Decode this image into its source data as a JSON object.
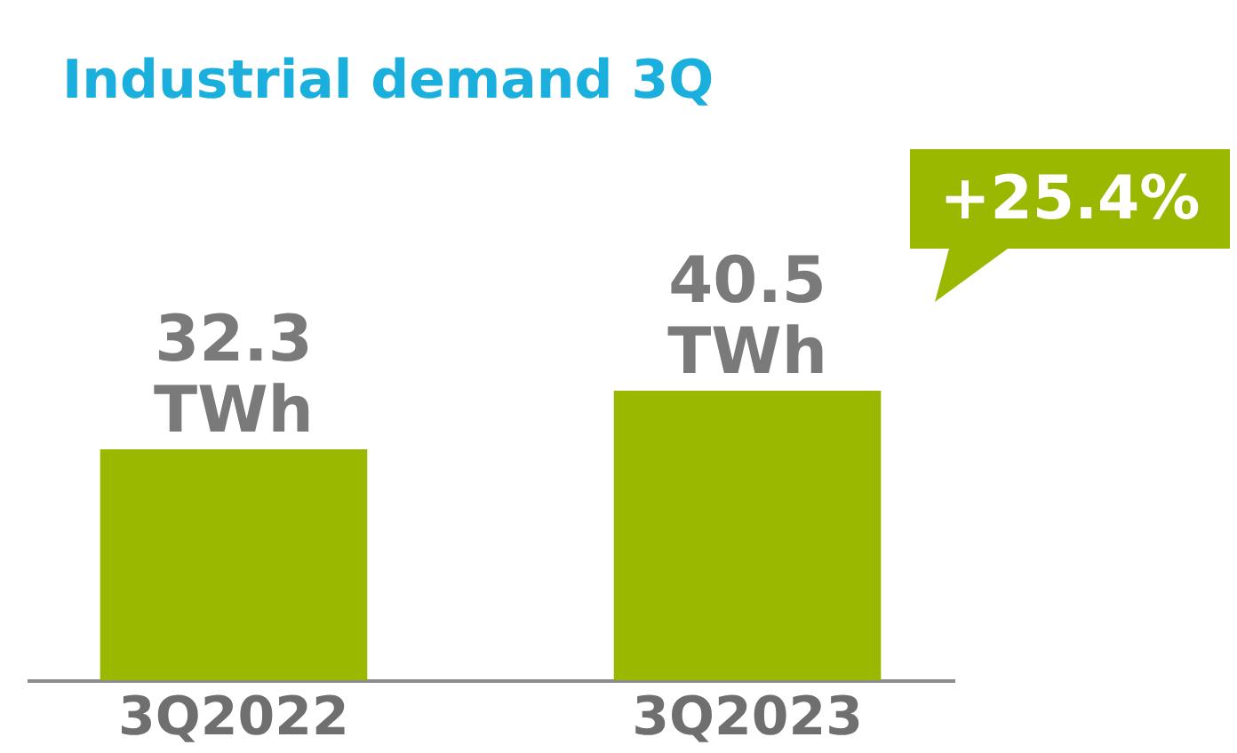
{
  "chart_data": {
    "type": "bar",
    "title": "Industrial demand 3Q",
    "categories": [
      "3Q2022",
      "3Q2023"
    ],
    "values": [
      32.3,
      40.5
    ],
    "value_labels": [
      "32.3 TWh",
      "40.5 TWh"
    ],
    "color": "#9bb800",
    "tick_labels": "x",
    "annotations": [
      "+25.4%"
    ]
  }
}
